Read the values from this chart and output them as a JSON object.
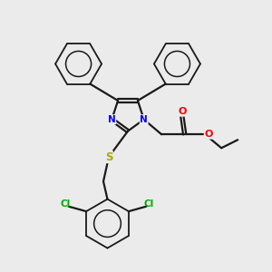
{
  "background_color": "#ebebeb",
  "bond_color": "#1a1a1a",
  "N_color": "#0000ff",
  "O_color": "#ff0000",
  "S_color": "#aaaa00",
  "Cl_color": "#00aa00",
  "figsize": [
    3.0,
    3.0
  ],
  "dpi": 100,
  "xlim": [
    0,
    10
  ],
  "ylim": [
    0,
    10
  ]
}
